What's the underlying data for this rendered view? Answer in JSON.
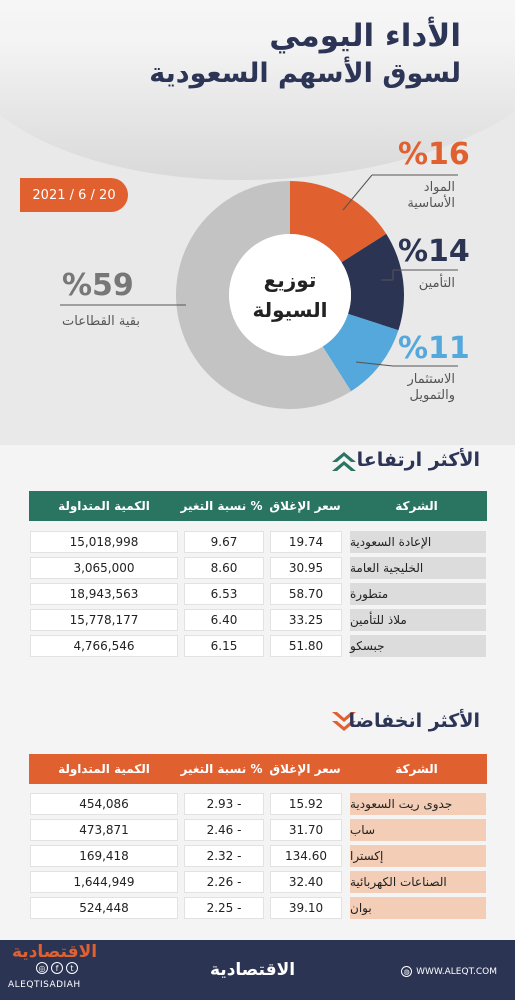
{
  "header": {
    "title_line1": "الأداء اليومي",
    "title_line2": "لسوق الأسهم السعودية",
    "date": "2021 / 6 / 20"
  },
  "chart_data": {
    "type": "pie",
    "title": "توزيع السيولة",
    "center_line1": "توزيع",
    "center_line2": "السيولة",
    "slices": [
      {
        "name": "المواد الأساسية",
        "name_line1": "المواد",
        "name_line2": "الأساسية",
        "value": 16,
        "label": "%16",
        "color": "#e06030"
      },
      {
        "name": "التأمين",
        "value": 14,
        "label": "%14",
        "color": "#2b3453"
      },
      {
        "name": "الاستثمار والتمويل",
        "name_line1": "الاستثمار",
        "name_line2": "والتمويل",
        "value": 11,
        "label": "%11",
        "color": "#55a8dc"
      },
      {
        "name": "بقية القطاعات",
        "value": 59,
        "label": "%59",
        "color": "#c3c3c3"
      }
    ]
  },
  "gainers": {
    "heading": "الأكثر ارتفاعا",
    "header_color": "#2a7562",
    "name_bg": "#dcdcdc",
    "columns": {
      "company": "الشركة",
      "close": "سعر الإغلاق",
      "change": "نسبة التغير %",
      "volume": "الكمية المتداولة"
    },
    "rows": [
      {
        "company": "الإعادة السعودية",
        "close": "19.74",
        "change": "9.67",
        "volume": "15,018,998"
      },
      {
        "company": "الخليجية العامة",
        "close": "30.95",
        "change": "8.60",
        "volume": "3,065,000"
      },
      {
        "company": "متطورة",
        "close": "58.70",
        "change": "6.53",
        "volume": "18,943,563"
      },
      {
        "company": "ملاذ للتأمين",
        "close": "33.25",
        "change": "6.40",
        "volume": "15,778,177"
      },
      {
        "company": "جبسكو",
        "close": "51.80",
        "change": "6.15",
        "volume": "4,766,546"
      }
    ]
  },
  "losers": {
    "heading": "الأكثر انخفاضا",
    "header_color": "#e06030",
    "name_bg": "#f3cdb6",
    "columns": {
      "company": "الشركة",
      "close": "سعر الإغلاق",
      "change": "نسبة التغير %",
      "volume": "الكمية المتداولة"
    },
    "rows": [
      {
        "company": "جدوى ريت السعودية",
        "close": "15.92",
        "change": "2.93 -",
        "volume": "454,086"
      },
      {
        "company": "ساب",
        "close": "31.70",
        "change": "2.46 -",
        "volume": "473,871"
      },
      {
        "company": "إكسترا",
        "close": "134.60",
        "change": "2.32 -",
        "volume": "169,418"
      },
      {
        "company": "الصناعات الكهربائية",
        "close": "32.40",
        "change": "2.26 -",
        "volume": "1,644,949"
      },
      {
        "company": "بوان",
        "close": "39.10",
        "change": "2.25 -",
        "volume": "524,448"
      }
    ]
  },
  "footer": {
    "logo": "الاقتصادية",
    "handle": "ALEQTISADIAH",
    "website": "WWW.ALEQT.COM"
  }
}
